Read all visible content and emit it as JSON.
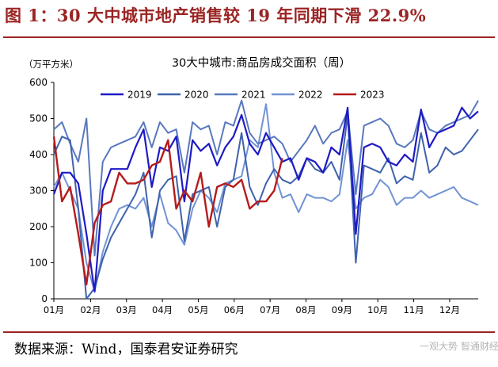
{
  "figure_title": "图 1：30 大中城市地产销售较 19 年同期下滑 22.9%",
  "source_note": "数据来源：Wind，国泰君安证券研究",
  "watermark": "一观大势 智通财经",
  "colors": {
    "title": "#9c2424",
    "s2019": "#1f1ac4",
    "s2020": "#3f62ad",
    "s2021": "#5878bf",
    "s2022": "#7193d4",
    "s2023": "#b51b1b"
  },
  "chart_data": {
    "type": "line",
    "title": "30大中城市:商品房成交面积（周）",
    "ylabel": "（万平方米）",
    "ylim": [
      0,
      600
    ],
    "yticks": [
      0,
      100,
      200,
      300,
      400,
      500,
      600
    ],
    "xlim": [
      1,
      53
    ],
    "x_tick_positions": [
      1,
      5.5,
      9.9,
      14.3,
      18.7,
      23.1,
      27.5,
      31.9,
      36.3,
      40.7,
      45.1,
      49.5
    ],
    "x_tick_labels": [
      "01月",
      "02月",
      "03月",
      "04月",
      "05月",
      "06月",
      "07月",
      "08月",
      "09月",
      "10月",
      "11月",
      "12月"
    ],
    "legend_position": "top",
    "series": [
      {
        "name": "2019",
        "x": [
          1,
          2,
          3,
          4,
          5,
          6,
          7,
          8,
          9,
          10,
          11,
          12,
          13,
          14,
          15,
          16,
          17,
          18,
          19,
          20,
          21,
          22,
          23,
          24,
          25,
          26,
          27,
          28,
          29,
          30,
          31,
          32,
          33,
          34,
          35,
          36,
          37,
          38,
          39,
          40,
          41,
          42,
          43,
          44,
          45,
          46,
          47,
          48,
          49,
          50,
          51,
          52,
          53
        ],
        "values": [
          290,
          350,
          350,
          320,
          180,
          20,
          300,
          360,
          360,
          360,
          420,
          470,
          310,
          420,
          410,
          450,
          270,
          440,
          410,
          430,
          370,
          420,
          450,
          510,
          430,
          400,
          460,
          420,
          380,
          390,
          330,
          390,
          380,
          350,
          420,
          400,
          530,
          180,
          420,
          430,
          420,
          380,
          370,
          400,
          380,
          525,
          420,
          460,
          470,
          480,
          530,
          500,
          520
        ]
      },
      {
        "name": "2020",
        "x": [
          1,
          2,
          3,
          4,
          5,
          6,
          7,
          8,
          9,
          10,
          11,
          12,
          13,
          14,
          15,
          16,
          17,
          18,
          19,
          20,
          21,
          22,
          23,
          24,
          25,
          26,
          27,
          28,
          29,
          30,
          31,
          32,
          33,
          34,
          35,
          36,
          37,
          38,
          39,
          40,
          41,
          42,
          43,
          44,
          45,
          46,
          47,
          48,
          49,
          50,
          51,
          52,
          53
        ],
        "values": [
          400,
          450,
          440,
          250,
          0,
          30,
          110,
          170,
          210,
          250,
          290,
          350,
          170,
          300,
          330,
          340,
          160,
          290,
          300,
          310,
          200,
          310,
          330,
          460,
          310,
          260,
          320,
          360,
          330,
          320,
          340,
          390,
          360,
          350,
          380,
          330,
          510,
          100,
          370,
          360,
          350,
          390,
          320,
          340,
          330,
          460,
          350,
          370,
          420,
          400,
          410,
          440,
          470
        ]
      },
      {
        "name": "2021",
        "x": [
          1,
          2,
          3,
          4,
          5,
          6,
          7,
          8,
          9,
          10,
          11,
          12,
          13,
          14,
          15,
          16,
          17,
          18,
          19,
          20,
          21,
          22,
          23,
          24,
          25,
          26,
          27,
          28,
          29,
          30,
          31,
          32,
          33,
          34,
          35,
          36,
          37,
          38,
          39,
          40,
          41,
          42,
          43,
          44,
          45,
          46,
          47,
          48,
          49,
          50,
          51,
          52,
          53
        ],
        "values": [
          470,
          490,
          430,
          380,
          500,
          120,
          380,
          420,
          430,
          440,
          450,
          490,
          420,
          490,
          460,
          470,
          350,
          490,
          470,
          480,
          400,
          490,
          480,
          550,
          460,
          430,
          440,
          450,
          430,
          380,
          410,
          440,
          480,
          430,
          460,
          470,
          520,
          290,
          480,
          490,
          500,
          480,
          430,
          420,
          440,
          520,
          470,
          460,
          480,
          490,
          500,
          510,
          550
        ]
      },
      {
        "name": "2022",
        "x": [
          1,
          2,
          3,
          4,
          5,
          6,
          7,
          8,
          9,
          10,
          11,
          12,
          13,
          14,
          15,
          16,
          17,
          18,
          19,
          20,
          21,
          22,
          23,
          24,
          25,
          26,
          27,
          28,
          29,
          30,
          31,
          32,
          33,
          34,
          35,
          36,
          37,
          38,
          39,
          40,
          41,
          42,
          43,
          44,
          45,
          46,
          47,
          48,
          49,
          50,
          51,
          52,
          53
        ],
        "values": [
          310,
          350,
          300,
          250,
          100,
          20,
          130,
          200,
          250,
          260,
          250,
          280,
          200,
          290,
          210,
          190,
          150,
          250,
          300,
          280,
          240,
          320,
          330,
          340,
          440,
          420,
          540,
          350,
          280,
          290,
          240,
          290,
          280,
          280,
          270,
          290,
          440,
          250,
          280,
          290,
          330,
          310,
          260,
          280,
          280,
          300,
          280,
          290,
          300,
          310,
          280,
          270,
          260
        ]
      },
      {
        "name": "2023",
        "x": [
          1,
          2,
          3,
          4,
          5,
          6,
          7,
          8,
          9,
          10,
          11,
          12,
          13,
          14,
          15,
          16,
          17,
          18,
          19,
          20,
          21,
          22,
          23,
          24,
          25,
          26,
          27,
          28,
          29
        ],
        "values": [
          450,
          270,
          310,
          180,
          40,
          210,
          260,
          270,
          350,
          320,
          320,
          330,
          370,
          380,
          440,
          250,
          300,
          270,
          350,
          200,
          310,
          320,
          310,
          330,
          250,
          270,
          270,
          300,
          390
        ]
      }
    ]
  }
}
